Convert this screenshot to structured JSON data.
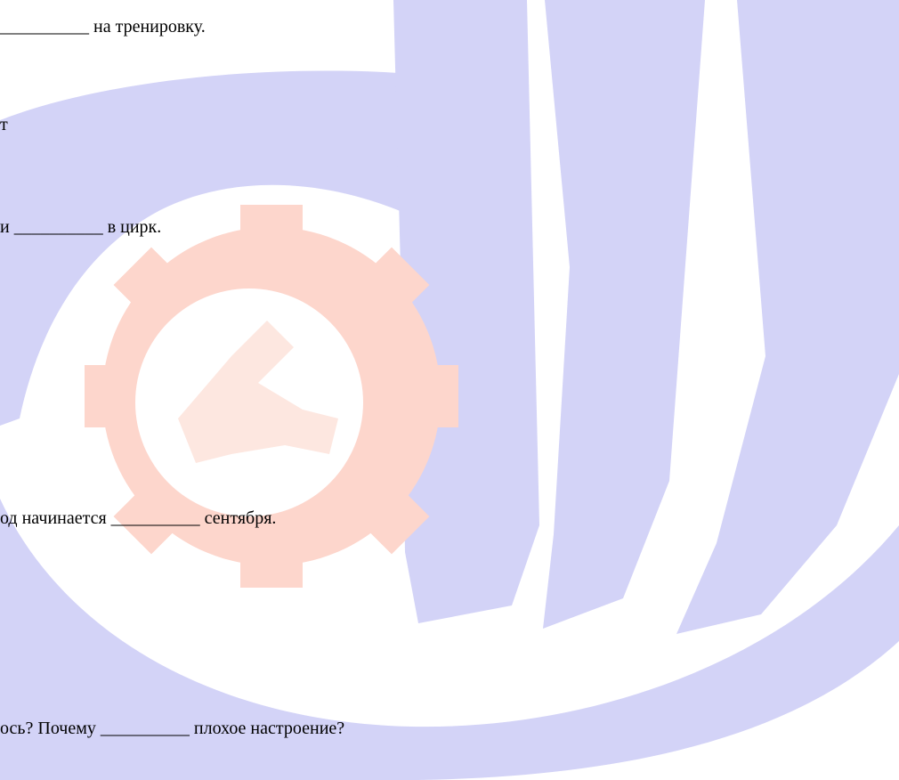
{
  "document": {
    "lines": [
      "__________ на тренировку.",
      "т",
      "и __________ в цирк.",
      "од начинается __________ сентября.",
      "ось? Почему __________ плохое настроение?"
    ]
  }
}
